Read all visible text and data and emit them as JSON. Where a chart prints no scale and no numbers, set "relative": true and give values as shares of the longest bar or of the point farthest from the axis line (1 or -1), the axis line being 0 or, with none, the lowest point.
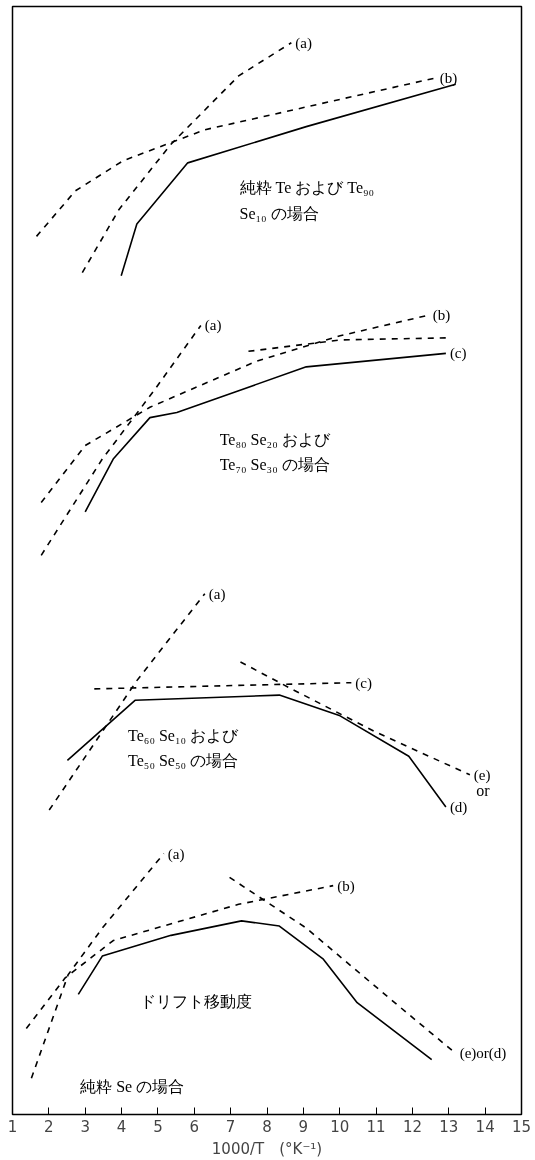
{
  "chart_data": {
    "type": "line",
    "relative": true,
    "xlabel": "1000/T　(°K⁻¹)",
    "xlim": [
      1,
      15
    ],
    "xticks": [
      1,
      2,
      3,
      4,
      5,
      6,
      7,
      8,
      9,
      10,
      11,
      12,
      13,
      14,
      15
    ],
    "tick_labels": "x",
    "grid": false,
    "series": [
      {
        "name": "(a)",
        "color": "#000000",
        "line_style": "dashed",
        "x": [
          2.92,
          3.93,
          5.36,
          7.22,
          8.67
        ],
        "values": [
          0.778,
          0.839,
          0.902,
          0.968,
          1.0
        ]
      },
      {
        "name": "(b)",
        "color": "#000000",
        "line_style": "dashed",
        "x": [
          1.66,
          2.73,
          4.04,
          6.29,
          12.64
        ],
        "values": [
          0.813,
          0.857,
          0.886,
          0.916,
          0.966
        ]
      },
      {
        "color": "#000000",
        "line_style": "solid",
        "x": [
          3.99,
          4.42,
          5.82,
          9.08,
          13.19
        ],
        "values": [
          0.775,
          0.825,
          0.884,
          0.919,
          0.96
        ]
      },
      {
        "name": "(a)",
        "color": "#000000",
        "line_style": "dashed",
        "x": [
          1.79,
          3.47,
          4.89,
          6.18
        ],
        "values": [
          0.505,
          0.598,
          0.664,
          0.727
        ]
      },
      {
        "name": "(b)",
        "color": "#000000",
        "line_style": "dashed",
        "x": [
          1.79,
          3.0,
          4.78,
          7.68,
          10.01,
          12.45
        ],
        "values": [
          0.556,
          0.611,
          0.648,
          0.692,
          0.717,
          0.737
        ]
      },
      {
        "color": "#000000",
        "line_style": "dashed",
        "x": [
          7.49,
          10.01,
          12.92
        ],
        "values": [
          0.702,
          0.713,
          0.715
        ]
      },
      {
        "name": "(c)",
        "color": "#000000",
        "line_style": "solid",
        "x": [
          3.0,
          3.77,
          4.78,
          5.52,
          7.22,
          9.08,
          12.92
        ],
        "values": [
          0.547,
          0.598,
          0.638,
          0.643,
          0.664,
          0.687,
          0.7
        ]
      },
      {
        "name": "(a)",
        "color": "#000000",
        "line_style": "dashed",
        "x": [
          2.01,
          4.42,
          6.29
        ],
        "values": [
          0.259,
          0.384,
          0.468
        ]
      },
      {
        "name": "(c)",
        "color": "#000000",
        "line_style": "dashed",
        "x": [
          3.25,
          10.32
        ],
        "values": [
          0.376,
          0.382
        ]
      },
      {
        "name": "(e)",
        "color": "#000000",
        "line_style": "dashed",
        "x": [
          7.27,
          8.62,
          10.95,
          13.58
        ],
        "values": [
          0.402,
          0.377,
          0.335,
          0.293
        ]
      },
      {
        "name": "(d)",
        "color": "#000000",
        "line_style": "solid",
        "x": [
          2.51,
          4.37,
          8.34,
          10.01,
          11.9,
          12.92
        ],
        "values": [
          0.307,
          0.365,
          0.37,
          0.35,
          0.311,
          0.262
        ]
      },
      {
        "name": "(a)",
        "color": "#000000",
        "line_style": "dashed",
        "x": [
          1.52,
          2.53,
          3.47,
          5.16
        ],
        "values": [
          0.0,
          0.1,
          0.145,
          0.217
        ]
      },
      {
        "name": "(b)",
        "color": "#000000",
        "line_style": "dashed",
        "x": [
          1.38,
          2.45,
          3.77,
          7.22,
          9.82
        ],
        "values": [
          0.048,
          0.097,
          0.133,
          0.168,
          0.186
        ]
      },
      {
        "name": "(e)or(d)",
        "color": "#000000",
        "line_style": "dashed",
        "x": [
          6.97,
          9.08,
          11.41,
          13.19
        ],
        "values": [
          0.194,
          0.145,
          0.076,
          0.024
        ]
      },
      {
        "color": "#000000",
        "line_style": "solid",
        "x": [
          2.81,
          3.47,
          5.36,
          7.3,
          8.34,
          9.55,
          10.48,
          12.53
        ],
        "values": [
          0.081,
          0.118,
          0.138,
          0.152,
          0.147,
          0.115,
          0.073,
          0.018
        ]
      }
    ],
    "annotations": [
      "純粋 Te および Te₉₀\nSe₁₀ の場合",
      "Te₈₀ Se₂₀ および\nTe₇₀ Se₃₀ の場合",
      "Te₆₀ Se₁₀ および\nTe₅₀ Se₅₀ の場合",
      "or",
      "ドリフト移動度",
      "純粋 Se の場合"
    ]
  }
}
